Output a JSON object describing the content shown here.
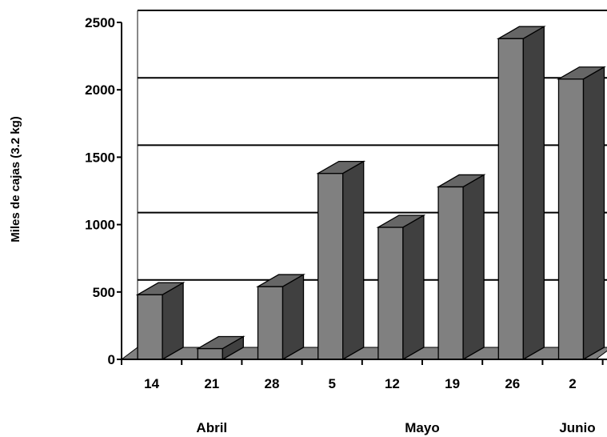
{
  "chart_data": {
    "type": "bar",
    "categories": [
      "14",
      "21",
      "28",
      "5",
      "12",
      "19",
      "26",
      "2"
    ],
    "groups": [
      {
        "label": "Abril",
        "categories": [
          "14",
          "21",
          "28"
        ]
      },
      {
        "label": "Mayo",
        "categories": [
          "5",
          "12",
          "19",
          "26"
        ]
      },
      {
        "label": "Junio",
        "categories": [
          "2"
        ]
      }
    ],
    "values": [
      480,
      80,
      540,
      1380,
      980,
      1280,
      2380,
      2080
    ],
    "ylabel": "Miles de cajas (3.2 kg)",
    "yticks": [
      "0",
      "500",
      "1000",
      "1500",
      "2000",
      "2500"
    ],
    "ylim": [
      0,
      2500
    ],
    "grid": true,
    "style": "3d-column",
    "colors": {
      "bar_front": "#808080",
      "bar_side": "#404040",
      "bar_top": "#666666",
      "floor": "#808080",
      "grid": "#000000"
    }
  }
}
